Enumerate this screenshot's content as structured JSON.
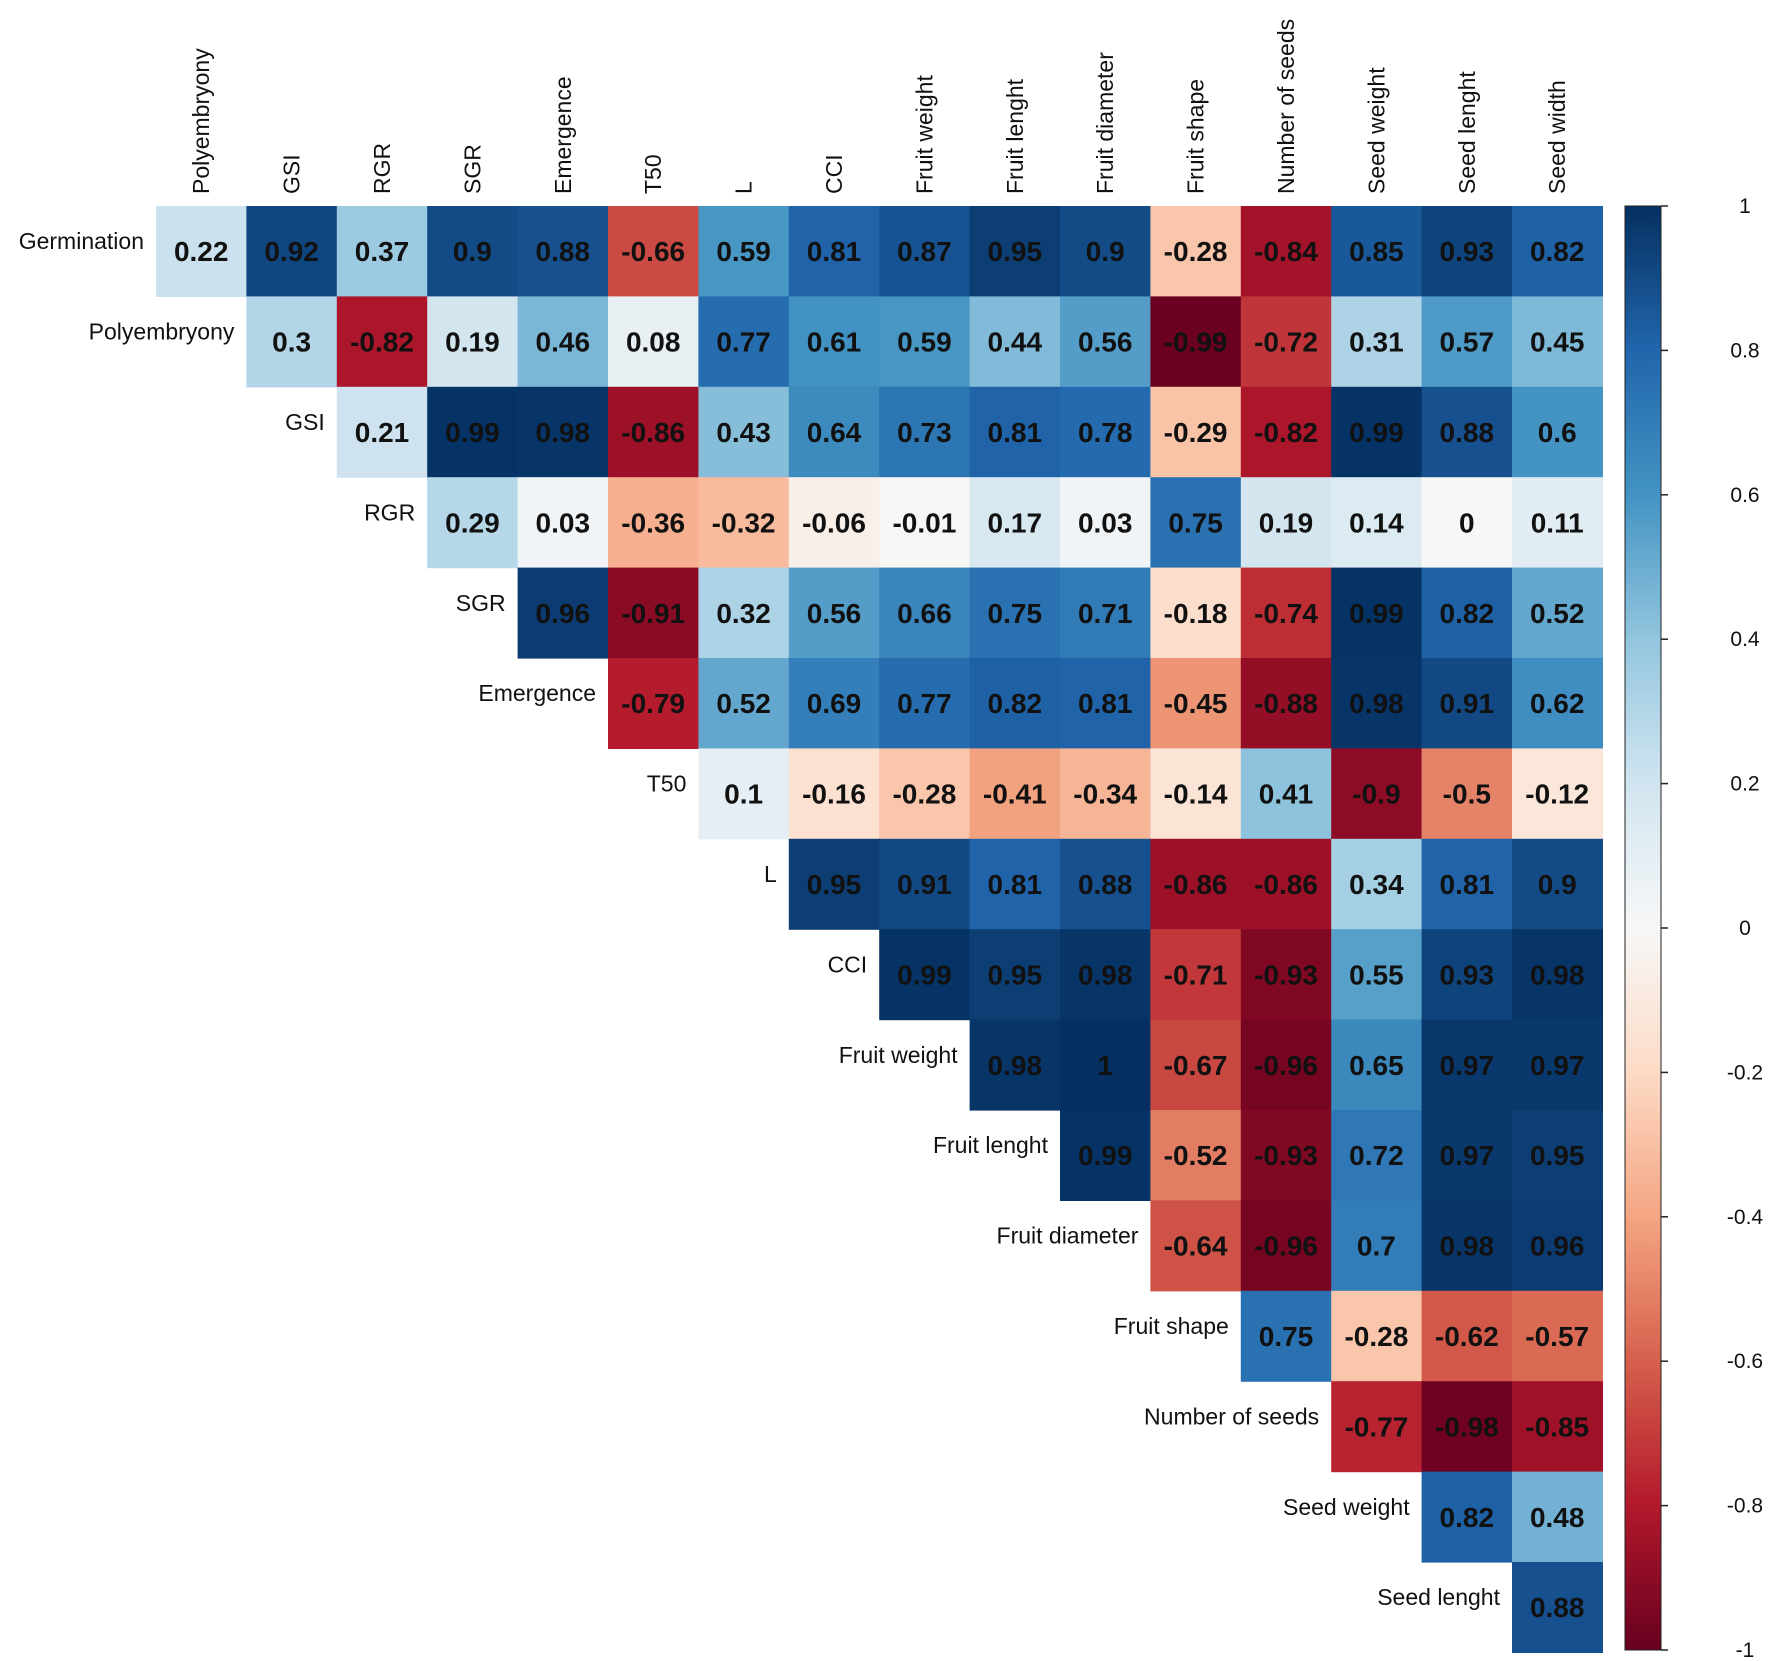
{
  "chart_data": {
    "type": "heatmap",
    "title": "",
    "row_labels": [
      "Germination",
      "Polyembryony",
      "GSI",
      "RGR",
      "SGR",
      "Emergence",
      "T50",
      "L",
      "CCI",
      "Fruit weight",
      "Fruit lenght",
      "Fruit diameter",
      "Fruit shape",
      "Number of seeds",
      "Seed weight",
      "Seed lenght"
    ],
    "col_labels": [
      "Polyembryony",
      "GSI",
      "RGR",
      "SGR",
      "Emergence",
      "T50",
      "L",
      "CCI",
      "Fruit weight",
      "Fruit lenght",
      "Fruit diameter",
      "Fruit shape",
      "Number of seeds",
      "Seed weight",
      "Seed lenght",
      "Seed width"
    ],
    "layout": "upper-triangle; row i starts at column i",
    "values": [
      [
        0.22,
        0.92,
        0.37,
        0.9,
        0.88,
        -0.66,
        0.59,
        0.81,
        0.87,
        0.95,
        0.9,
        -0.28,
        -0.84,
        0.85,
        0.93,
        0.82
      ],
      [
        0.3,
        -0.82,
        0.19,
        0.46,
        0.08,
        0.77,
        0.61,
        0.59,
        0.44,
        0.56,
        -0.99,
        -0.72,
        0.31,
        0.57,
        0.45
      ],
      [
        0.21,
        0.99,
        0.98,
        -0.86,
        0.43,
        0.64,
        0.73,
        0.81,
        0.78,
        -0.29,
        -0.82,
        0.99,
        0.88,
        0.6
      ],
      [
        0.29,
        0.03,
        -0.36,
        -0.32,
        -0.06,
        -0.01,
        0.17,
        0.03,
        0.75,
        0.19,
        0.14,
        0,
        0.11
      ],
      [
        0.96,
        -0.91,
        0.32,
        0.56,
        0.66,
        0.75,
        0.71,
        -0.18,
        -0.74,
        0.99,
        0.82,
        0.52
      ],
      [
        -0.79,
        0.52,
        0.69,
        0.77,
        0.82,
        0.81,
        -0.45,
        -0.88,
        0.98,
        0.91,
        0.62
      ],
      [
        0.1,
        -0.16,
        -0.28,
        -0.41,
        -0.34,
        -0.14,
        0.41,
        -0.9,
        -0.5,
        -0.12
      ],
      [
        0.95,
        0.91,
        0.81,
        0.88,
        -0.86,
        -0.86,
        0.34,
        0.81,
        0.9
      ],
      [
        0.99,
        0.95,
        0.98,
        -0.71,
        -0.93,
        0.55,
        0.93,
        0.98
      ],
      [
        0.98,
        1,
        -0.67,
        -0.96,
        0.65,
        0.97,
        0.97
      ],
      [
        0.99,
        -0.52,
        -0.93,
        0.72,
        0.97,
        0.95
      ],
      [
        -0.64,
        -0.96,
        0.7,
        0.98,
        0.96
      ],
      [
        0.75,
        -0.28,
        -0.62,
        -0.57
      ],
      [
        -0.77,
        -0.98,
        -0.85
      ],
      [
        0.82,
        0.48
      ],
      [
        0.88
      ]
    ],
    "colorbar": {
      "range": [
        -1,
        1
      ],
      "ticks": [
        "1",
        "0.8",
        "0.6",
        "0.4",
        "0.2",
        "0",
        "-0.2",
        "-0.4",
        "-0.6",
        "-0.8",
        "-1"
      ],
      "tick_values": [
        1,
        0.8,
        0.6,
        0.4,
        0.2,
        0,
        -0.2,
        -0.4,
        -0.6,
        -0.8,
        -1
      ],
      "colormap": [
        "#67001f",
        "#b2182b",
        "#d6604d",
        "#f4a582",
        "#fddbc7",
        "#f7f7f7",
        "#d1e5f0",
        "#92c5de",
        "#4393c3",
        "#2166ac",
        "#053061"
      ]
    },
    "legend_position": "right"
  }
}
